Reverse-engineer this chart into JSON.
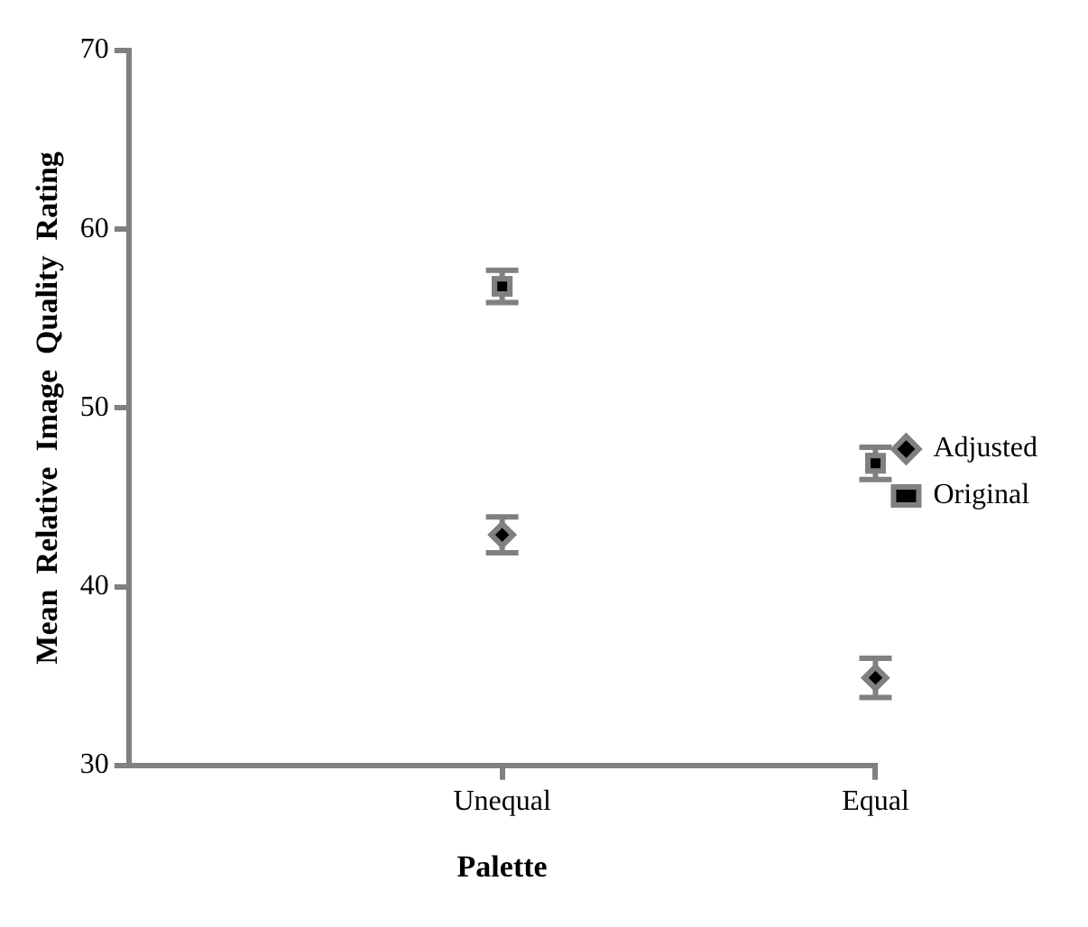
{
  "chart_data": {
    "type": "scatter",
    "xlabel": "Palette",
    "ylabel": "Mean  Relative  Image  Quality  Rating",
    "categories": [
      "Unequal",
      "Equal"
    ],
    "series": [
      {
        "name": "Adjusted",
        "color": "#000000",
        "marker": "diamond",
        "values": [
          42.9,
          34.9
        ],
        "errors": [
          1,
          1.1
        ]
      },
      {
        "name": "Original",
        "color": "#000000",
        "marker": "square",
        "values": [
          56.8,
          46.9
        ],
        "errors": [
          0.9,
          0.9
        ]
      }
    ],
    "ylim": [
      30,
      70
    ],
    "yticks": [
      30,
      40,
      50,
      60,
      70
    ],
    "grid": false,
    "legend": "right"
  }
}
